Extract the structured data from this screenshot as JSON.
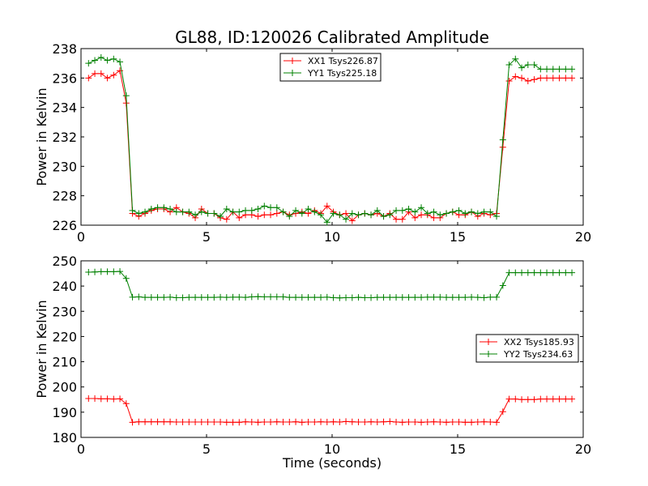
{
  "title": "GL88, ID:120026 Calibrated Amplitude",
  "chart_data": [
    {
      "type": "line",
      "title": "GL88, ID:120026 Calibrated Amplitude",
      "xlabel": "",
      "ylabel": "Power in Kelvin",
      "xlim": [
        0,
        20
      ],
      "ylim": [
        226,
        238
      ],
      "xticks": [
        "0",
        "5",
        "10",
        "15",
        "20"
      ],
      "yticks": [
        "226",
        "228",
        "230",
        "232",
        "234",
        "236",
        "238"
      ],
      "grid": false,
      "legend_position": "top-center",
      "x": [
        0.3,
        0.55,
        0.8,
        1.05,
        1.3,
        1.55,
        1.8,
        2.05,
        2.3,
        2.55,
        2.8,
        3.05,
        3.3,
        3.55,
        3.8,
        4.05,
        4.3,
        4.55,
        4.8,
        5.05,
        5.3,
        5.55,
        5.8,
        6.05,
        6.3,
        6.55,
        6.8,
        7.05,
        7.3,
        7.55,
        7.8,
        8.05,
        8.3,
        8.55,
        8.8,
        9.05,
        9.3,
        9.55,
        9.8,
        10.05,
        10.3,
        10.55,
        10.8,
        11.05,
        11.3,
        11.55,
        11.8,
        12.05,
        12.3,
        12.55,
        12.8,
        13.05,
        13.3,
        13.55,
        13.8,
        14.05,
        14.3,
        14.55,
        14.8,
        15.05,
        15.3,
        15.55,
        15.8,
        16.05,
        16.3,
        16.55,
        16.8,
        17.05,
        17.3,
        17.55,
        17.8,
        18.05,
        18.3,
        18.55,
        18.8,
        19.05,
        19.3,
        19.55
      ],
      "series": [
        {
          "name": "XX1 Tsys226.87",
          "color": "#ff0000",
          "values": [
            236.0,
            236.3,
            236.3,
            236.0,
            236.2,
            236.5,
            234.3,
            226.8,
            226.6,
            226.8,
            227.0,
            227.1,
            227.1,
            226.9,
            227.2,
            226.9,
            226.8,
            226.5,
            227.1,
            226.8,
            226.8,
            226.5,
            226.4,
            226.9,
            226.5,
            226.7,
            226.7,
            226.6,
            226.7,
            226.7,
            226.8,
            226.9,
            226.7,
            226.8,
            226.9,
            226.8,
            227.0,
            226.8,
            227.3,
            226.9,
            226.7,
            226.8,
            226.3,
            226.7,
            226.8,
            226.7,
            226.8,
            226.6,
            226.8,
            226.4,
            226.4,
            226.9,
            226.5,
            226.7,
            226.7,
            226.5,
            226.5,
            226.8,
            226.9,
            226.7,
            226.7,
            226.9,
            226.6,
            226.8,
            226.7,
            226.8,
            231.3,
            235.8,
            236.1,
            236.0,
            235.8,
            235.9,
            236.0,
            236.0,
            236.0,
            236.0,
            236.0,
            236.0
          ]
        },
        {
          "name": "YY1 Tsys225.18",
          "color": "#008000",
          "values": [
            237.0,
            237.2,
            237.4,
            237.2,
            237.3,
            237.1,
            234.8,
            227.0,
            226.8,
            226.9,
            227.1,
            227.2,
            227.2,
            227.1,
            226.9,
            226.9,
            226.9,
            226.7,
            226.9,
            226.8,
            226.8,
            226.6,
            227.1,
            226.9,
            226.9,
            227.0,
            227.0,
            227.1,
            227.3,
            227.2,
            227.2,
            226.9,
            226.6,
            227.0,
            226.8,
            227.1,
            226.9,
            226.7,
            226.2,
            226.8,
            226.7,
            226.4,
            226.8,
            226.7,
            226.8,
            226.7,
            227.0,
            226.6,
            226.7,
            227.0,
            227.0,
            227.1,
            226.9,
            227.2,
            226.8,
            226.9,
            226.7,
            226.8,
            226.9,
            227.0,
            226.8,
            226.9,
            226.8,
            226.9,
            226.9,
            226.6,
            231.8,
            236.9,
            237.3,
            236.7,
            236.9,
            236.9,
            236.6,
            236.6,
            236.6,
            236.6,
            236.6,
            236.6
          ]
        }
      ]
    },
    {
      "type": "line",
      "title": "",
      "xlabel": "Time (seconds)",
      "ylabel": "Power in Kelvin",
      "xlim": [
        0,
        20
      ],
      "ylim": [
        180,
        250
      ],
      "xticks": [
        "0",
        "5",
        "10",
        "15",
        "20"
      ],
      "yticks": [
        "180",
        "190",
        "200",
        "210",
        "220",
        "230",
        "240",
        "250"
      ],
      "grid": false,
      "legend_position": "right",
      "x": [
        0.3,
        0.55,
        0.8,
        1.05,
        1.3,
        1.55,
        1.8,
        2.05,
        2.3,
        2.55,
        2.8,
        3.05,
        3.3,
        3.55,
        3.8,
        4.05,
        4.3,
        4.55,
        4.8,
        5.05,
        5.3,
        5.55,
        5.8,
        6.05,
        6.3,
        6.55,
        6.8,
        7.05,
        7.3,
        7.55,
        7.8,
        8.05,
        8.3,
        8.55,
        8.8,
        9.05,
        9.3,
        9.55,
        9.8,
        10.05,
        10.3,
        10.55,
        10.8,
        11.05,
        11.3,
        11.55,
        11.8,
        12.05,
        12.3,
        12.55,
        12.8,
        13.05,
        13.3,
        13.55,
        13.8,
        14.05,
        14.3,
        14.55,
        14.8,
        15.05,
        15.3,
        15.55,
        15.8,
        16.05,
        16.3,
        16.55,
        16.8,
        17.05,
        17.3,
        17.55,
        17.8,
        18.05,
        18.3,
        18.55,
        18.8,
        19.05,
        19.3,
        19.55
      ],
      "series": [
        {
          "name": "XX2 Tsys185.93",
          "color": "#ff0000",
          "values": [
            195.4,
            195.4,
            195.3,
            195.3,
            195.2,
            195.3,
            193.4,
            186.0,
            186.2,
            186.2,
            186.2,
            186.2,
            186.2,
            186.2,
            186.1,
            186.1,
            186.1,
            186.1,
            186.1,
            186.1,
            186.1,
            186.1,
            186.0,
            186.0,
            186.0,
            186.2,
            186.1,
            186.0,
            186.1,
            186.1,
            186.2,
            186.1,
            186.1,
            186.2,
            186.0,
            186.1,
            186.1,
            186.2,
            186.1,
            186.2,
            186.1,
            186.3,
            186.2,
            186.1,
            186.1,
            186.2,
            186.1,
            186.2,
            186.3,
            186.1,
            186.0,
            186.1,
            186.1,
            186.0,
            186.1,
            186.2,
            186.1,
            186.0,
            186.1,
            186.1,
            186.0,
            186.0,
            186.1,
            186.2,
            186.1,
            186.0,
            190.2,
            195.2,
            195.2,
            195.0,
            195.0,
            195.0,
            195.2,
            195.2,
            195.2,
            195.2,
            195.2,
            195.2
          ]
        },
        {
          "name": "YY2 Tsys234.63",
          "color": "#008000",
          "values": [
            245.5,
            245.6,
            245.7,
            245.7,
            245.7,
            245.8,
            243.0,
            235.6,
            235.7,
            235.5,
            235.5,
            235.5,
            235.5,
            235.6,
            235.4,
            235.4,
            235.5,
            235.5,
            235.5,
            235.5,
            235.5,
            235.6,
            235.5,
            235.6,
            235.6,
            235.5,
            235.7,
            235.8,
            235.7,
            235.7,
            235.7,
            235.7,
            235.5,
            235.5,
            235.5,
            235.5,
            235.5,
            235.5,
            235.6,
            235.4,
            235.3,
            235.4,
            235.4,
            235.5,
            235.4,
            235.4,
            235.5,
            235.5,
            235.5,
            235.5,
            235.5,
            235.5,
            235.5,
            235.5,
            235.6,
            235.6,
            235.6,
            235.5,
            235.5,
            235.5,
            235.5,
            235.6,
            235.5,
            235.4,
            235.6,
            235.6,
            240.2,
            245.3,
            245.3,
            245.3,
            245.3,
            245.3,
            245.3,
            245.3,
            245.3,
            245.3,
            245.3,
            245.3
          ]
        }
      ]
    }
  ]
}
